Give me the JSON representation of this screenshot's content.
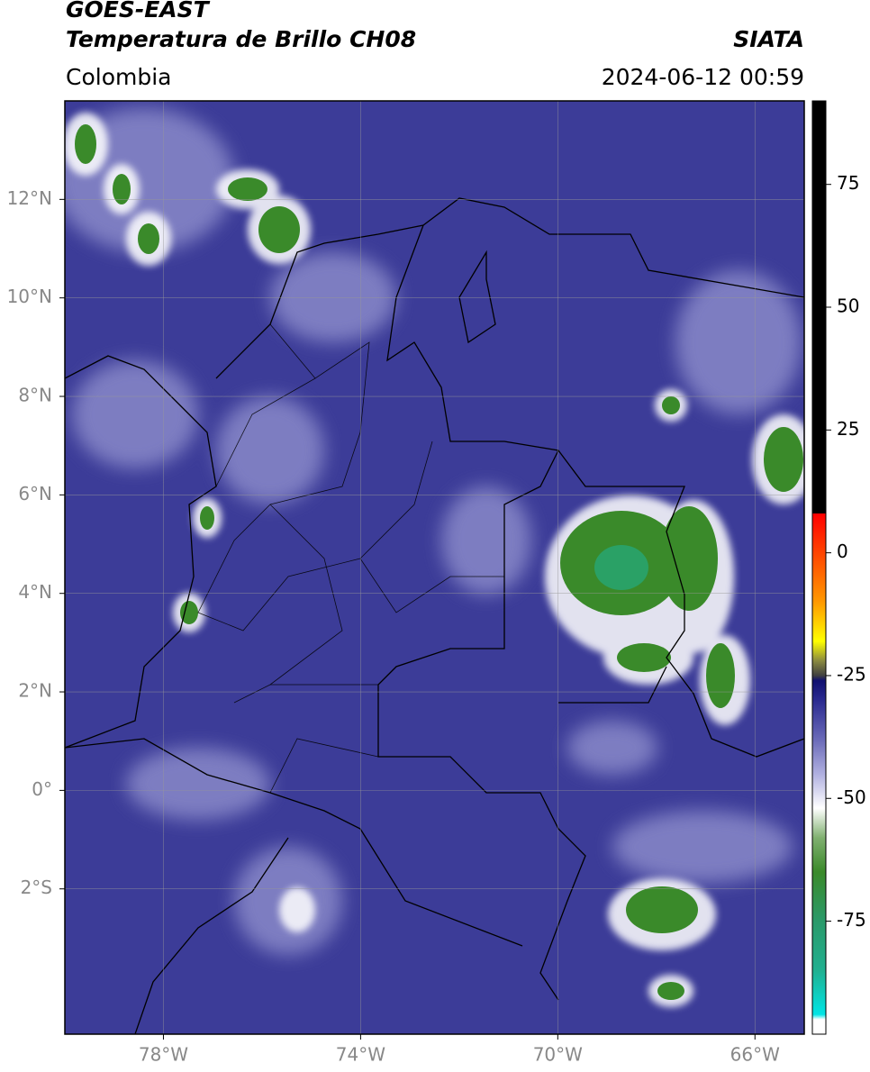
{
  "header": {
    "title": "GOES-EAST",
    "subtitle": "Temperatura de Brillo CH08",
    "source": "SIATA",
    "region": "Colombia",
    "timestamp": "2024-06-12 00:59"
  },
  "map": {
    "type": "map",
    "xlim": [
      -80,
      -65
    ],
    "ylim": [
      -4.95,
      14
    ],
    "xticks": [
      {
        "value": -78,
        "label": "78°W"
      },
      {
        "value": -74,
        "label": "74°W"
      },
      {
        "value": -70,
        "label": "70°W"
      },
      {
        "value": -66,
        "label": "66°W"
      }
    ],
    "yticks": [
      {
        "value": 12,
        "label": "12°N"
      },
      {
        "value": 10,
        "label": "10°N"
      },
      {
        "value": 8,
        "label": "8°N"
      },
      {
        "value": 6,
        "label": "6°N"
      },
      {
        "value": 4,
        "label": "4°N"
      },
      {
        "value": 2,
        "label": "2°N"
      },
      {
        "value": 0,
        "label": "0°"
      },
      {
        "value": -2,
        "label": "2°S"
      }
    ],
    "grid": true,
    "colorbar": {
      "lim": [
        -98,
        92
      ],
      "ticks": [
        75,
        50,
        25,
        0,
        -25,
        -50,
        -75
      ],
      "colormap": [
        {
          "value": -98,
          "color": "#ffffff"
        },
        {
          "value": -95,
          "color": "#ffffff"
        },
        {
          "value": -94,
          "color": "#00e5e5"
        },
        {
          "value": -85,
          "color": "#20b090"
        },
        {
          "value": -75,
          "color": "#2a9a6a"
        },
        {
          "value": -65,
          "color": "#3a8a2a"
        },
        {
          "value": -58,
          "color": "#80b070"
        },
        {
          "value": -52,
          "color": "#ffffff"
        },
        {
          "value": -45,
          "color": "#b0b0e0"
        },
        {
          "value": -38,
          "color": "#6a6ab8"
        },
        {
          "value": -30,
          "color": "#2a2a90"
        },
        {
          "value": -26,
          "color": "#101070"
        },
        {
          "value": -25,
          "color": "#404040"
        },
        {
          "value": -22,
          "color": "#8a8a40"
        },
        {
          "value": -18,
          "color": "#ffff00"
        },
        {
          "value": -10,
          "color": "#ff9900"
        },
        {
          "value": 0,
          "color": "#ff4400"
        },
        {
          "value": 8,
          "color": "#ff0000"
        },
        {
          "value": 8.01,
          "color": "#000000"
        },
        {
          "value": 92,
          "color": "#000000"
        }
      ]
    }
  }
}
